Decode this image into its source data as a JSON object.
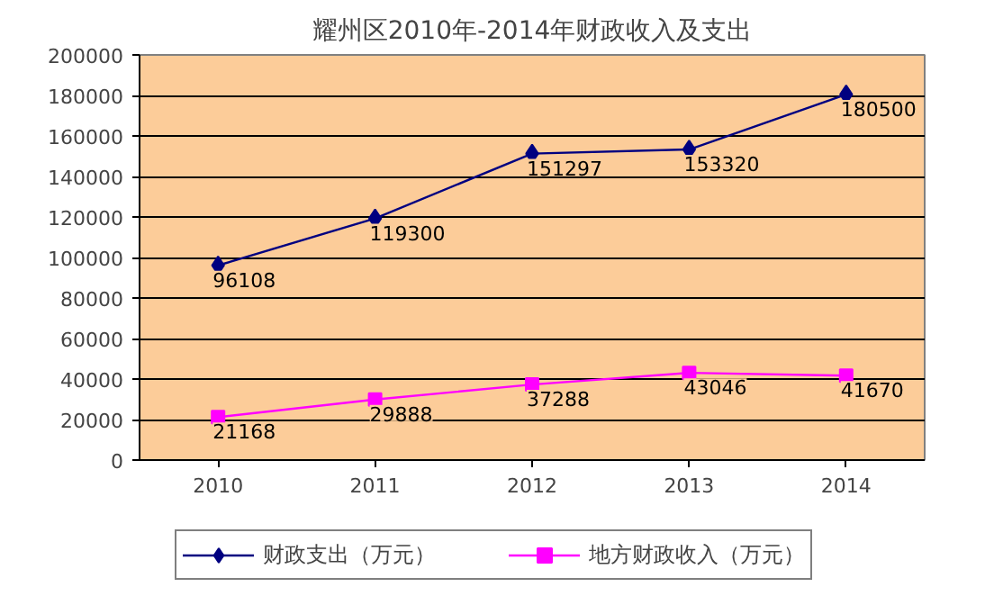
{
  "chart_data": {
    "type": "line",
    "title": "耀州区2010年-2014年财政收入及支出",
    "categories": [
      "2010",
      "2011",
      "2012",
      "2013",
      "2014"
    ],
    "series": [
      {
        "name": "财政支出（万元）",
        "color": "#000080",
        "marker": "diamond",
        "values": [
          96108,
          119300,
          151297,
          153320,
          180500
        ]
      },
      {
        "name": "地方财政收入（万元）",
        "color": "#ff00ff",
        "marker": "square",
        "values": [
          21168,
          29888,
          37288,
          43046,
          41670
        ]
      }
    ],
    "ylim": [
      0,
      200000
    ],
    "yticks": [
      0,
      20000,
      40000,
      60000,
      80000,
      100000,
      120000,
      140000,
      160000,
      180000,
      200000
    ],
    "grid": "y",
    "legend": "bottom",
    "data_labels": true
  }
}
